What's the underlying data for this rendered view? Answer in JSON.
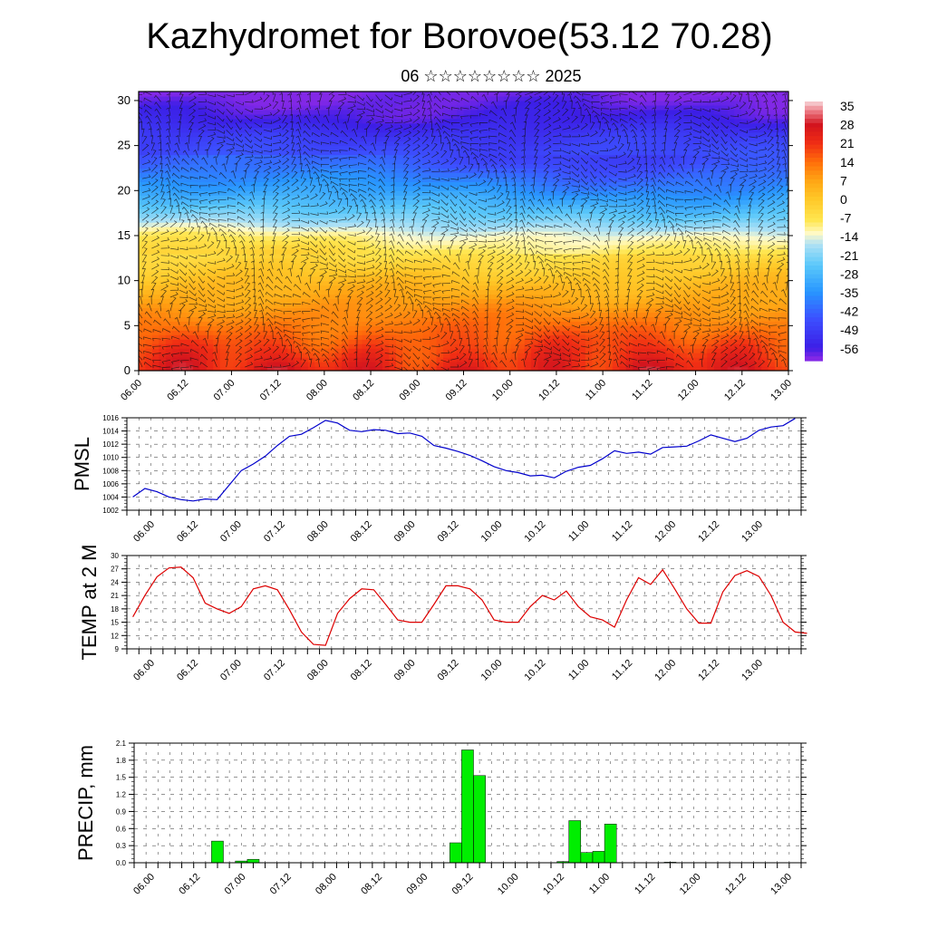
{
  "title": "Kazhydromet for Borovoe(53.12 70.28)",
  "subtitle": "06 ☆☆☆☆☆☆☆☆ 2025",
  "time_labels": [
    "06.00",
    "06.12",
    "07.00",
    "07.12",
    "08.00",
    "08.12",
    "09.00",
    "09.12",
    "10.00",
    "10.12",
    "11.00",
    "11.12",
    "12.00",
    "12.12",
    "13.00"
  ],
  "chart_data": [
    {
      "type": "heatmap",
      "name_hint": "upper-air temperature and wind barbs",
      "ylim": [
        0,
        31
      ],
      "yticks": [
        0,
        5,
        10,
        15,
        20,
        25,
        30
      ],
      "colorbar_labels": [
        "35",
        "28",
        "21",
        "14",
        "7",
        "0",
        "-7",
        "-14",
        "-21",
        "-28",
        "-35",
        "-42",
        "-49",
        "-56"
      ],
      "temp_profile": [
        {
          "h": 0,
          "t": 24
        },
        {
          "h": 3,
          "t": 18
        },
        {
          "h": 7,
          "t": 9
        },
        {
          "h": 10,
          "t": 2
        },
        {
          "h": 13,
          "t": -6
        },
        {
          "h": 15,
          "t": -12
        },
        {
          "h": 17,
          "t": -22
        },
        {
          "h": 20,
          "t": -34
        },
        {
          "h": 23,
          "t": -44
        },
        {
          "h": 26,
          "t": -50
        },
        {
          "h": 28,
          "t": -56
        },
        {
          "h": 31,
          "t": -60
        }
      ],
      "colors": {
        "warm": "#e41a1c",
        "cold": "#3b30e6"
      }
    },
    {
      "type": "line",
      "ylabel": "PMSL",
      "ylim": [
        1002,
        1016
      ],
      "yticks": [
        1002,
        1004,
        1006,
        1008,
        1010,
        1012,
        1014,
        1016
      ],
      "color": "#0000cc",
      "values": [
        1004.0,
        1005.3,
        1004.8,
        1004.0,
        1003.6,
        1003.4,
        1003.7,
        1003.6,
        1005.8,
        1008.0,
        1009.0,
        1010.2,
        1011.8,
        1013.2,
        1013.5,
        1014.5,
        1015.6,
        1015.2,
        1014.1,
        1013.9,
        1014.2,
        1014.1,
        1013.6,
        1013.7,
        1013.2,
        1011.8,
        1011.4,
        1010.9,
        1010.3,
        1009.5,
        1008.6,
        1008.0,
        1007.7,
        1007.2,
        1007.3,
        1006.9,
        1007.9,
        1008.5,
        1008.8,
        1009.8,
        1011.0,
        1010.6,
        1010.8,
        1010.5,
        1011.5,
        1011.6,
        1011.7,
        1012.5,
        1013.4,
        1012.9,
        1012.4,
        1012.9,
        1014.1,
        1014.6,
        1014.8,
        1015.9
      ],
      "x_step_hours": 3
    },
    {
      "type": "line",
      "ylabel": "TEMP at 2 M",
      "ylim": [
        9,
        30
      ],
      "yticks": [
        9,
        12,
        15,
        18,
        21,
        24,
        27,
        30
      ],
      "color": "#dd0000",
      "values": [
        16.2,
        21.0,
        25.2,
        27.2,
        27.4,
        25.0,
        19.3,
        18.0,
        17.0,
        18.5,
        22.5,
        23.2,
        22.3,
        17.8,
        12.8,
        10.0,
        9.8,
        17.0,
        20.3,
        22.5,
        22.3,
        19.0,
        15.5,
        15.0,
        15.0,
        19.0,
        23.2,
        23.2,
        22.5,
        20.0,
        15.5,
        15.0,
        15.0,
        18.5,
        21.0,
        20.0,
        22.0,
        18.5,
        16.2,
        15.5,
        13.9,
        20.0,
        25.0,
        23.5,
        26.8,
        22.5,
        18.0,
        14.8,
        14.8,
        21.8,
        25.5,
        26.6,
        25.3,
        21.0,
        15.0,
        12.8,
        12.5
      ],
      "x_step_hours": 3
    },
    {
      "type": "bar",
      "ylabel": "PRECIP, mm",
      "ylim": [
        0,
        2.1
      ],
      "yticks": [
        "0.0",
        "0.3",
        "0.6",
        "0.9",
        "1.2",
        "1.5",
        "1.8",
        "2.1"
      ],
      "color": "#00ee00",
      "bars": [
        {
          "slot": 6,
          "value": 0.38
        },
        {
          "slot": 8,
          "value": 0.03
        },
        {
          "slot": 9,
          "value": 0.06
        },
        {
          "slot": 26,
          "value": 0.35
        },
        {
          "slot": 27,
          "value": 1.98
        },
        {
          "slot": 28,
          "value": 1.53
        },
        {
          "slot": 35,
          "value": 0.02
        },
        {
          "slot": 36,
          "value": 0.74
        },
        {
          "slot": 37,
          "value": 0.18
        },
        {
          "slot": 38,
          "value": 0.2
        },
        {
          "slot": 39,
          "value": 0.68
        },
        {
          "slot": 44,
          "value": 0.01
        }
      ],
      "x_step_hours": 3
    }
  ]
}
